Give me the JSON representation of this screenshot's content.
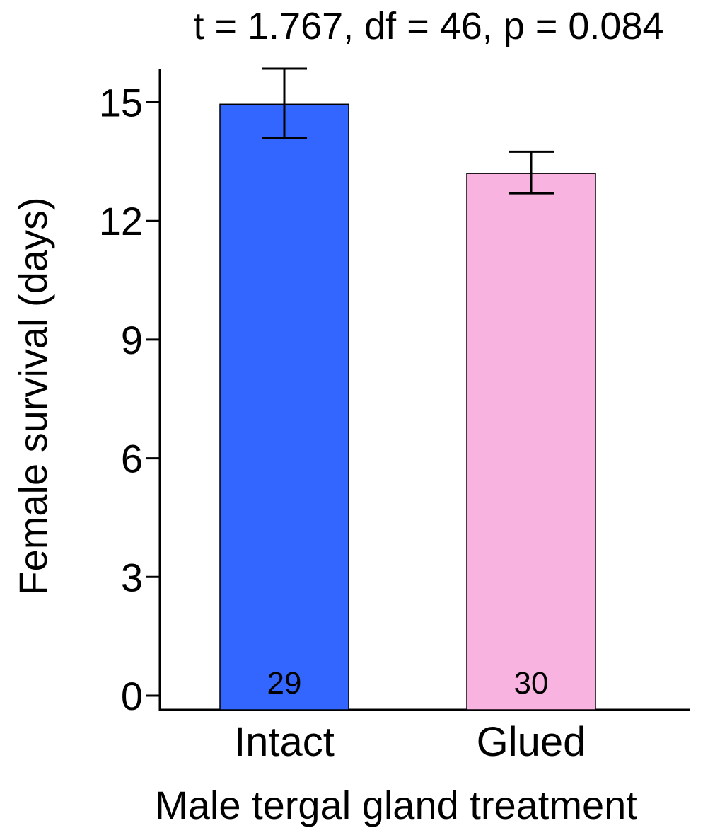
{
  "chart_data": {
    "type": "bar",
    "title": "t = 1.767, df = 46, p = 0.084",
    "xlabel": "Male tergal gland treatment",
    "ylabel": "Female survival (days)",
    "categories": [
      "Intact",
      "Glued"
    ],
    "values": [
      14.95,
      13.2
    ],
    "error_low": [
      14.1,
      12.7
    ],
    "error_high": [
      15.85,
      13.75
    ],
    "n_labels": [
      "29",
      "30"
    ],
    "colors": [
      "#3366ff",
      "#f9b3e0"
    ],
    "ylim": [
      0,
      16
    ],
    "yticks": [
      0,
      3,
      6,
      9,
      12,
      15
    ],
    "ytick_labels": [
      "0",
      "3",
      "6",
      "9",
      "12",
      "15"
    ],
    "grid": false,
    "legend": "none"
  }
}
